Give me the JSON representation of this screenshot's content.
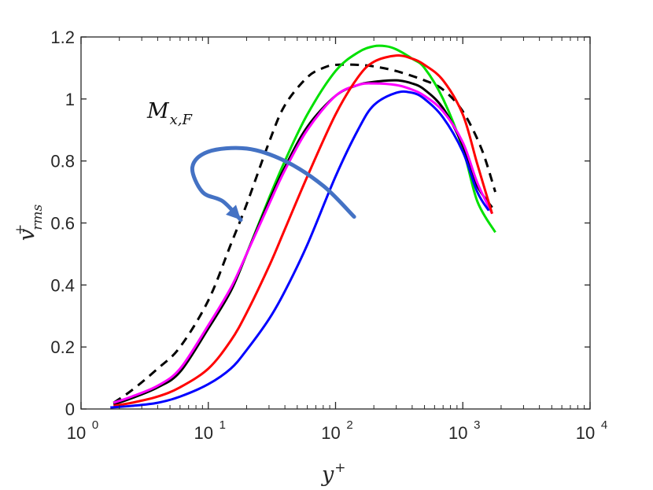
{
  "chart_data": {
    "type": "line",
    "title": "",
    "xlabel": {
      "base": "y",
      "sup": "+"
    },
    "ylabel": {
      "base": "v",
      "sup": "+",
      "sub": "rms"
    },
    "xscale": "log",
    "xlim": [
      1,
      10000
    ],
    "ylim": [
      0,
      1.2
    ],
    "xticks": [
      {
        "value": 1,
        "base": "10",
        "exp": "0"
      },
      {
        "value": 10,
        "base": "10",
        "exp": "1"
      },
      {
        "value": 100,
        "base": "10",
        "exp": "2"
      },
      {
        "value": 1000,
        "base": "10",
        "exp": "3"
      },
      {
        "value": 10000,
        "base": "10",
        "exp": "4"
      }
    ],
    "yticks": [
      {
        "value": 0,
        "label": "0"
      },
      {
        "value": 0.2,
        "label": "0.2"
      },
      {
        "value": 0.4,
        "label": "0.4"
      },
      {
        "value": 0.6,
        "label": "0.6"
      },
      {
        "value": 0.8,
        "label": "0.8"
      },
      {
        "value": 1.0,
        "label": "1"
      },
      {
        "value": 1.2,
        "label": "1.2"
      }
    ],
    "grid": false,
    "annotation": {
      "base": "M",
      "sub": "x,F",
      "x": 13,
      "y": 0.975
    },
    "arrow": {
      "color": "#4472c4",
      "points": [
        [
          140,
          0.62
        ],
        [
          80,
          0.72
        ],
        [
          40,
          0.8
        ],
        [
          20,
          0.84
        ],
        [
          10,
          0.83
        ],
        [
          7.5,
          0.78
        ],
        [
          9,
          0.7
        ],
        [
          13,
          0.67
        ],
        [
          18,
          0.61
        ]
      ]
    },
    "series": [
      {
        "name": "dashed",
        "color": "#000000",
        "dash": true,
        "x": [
          1.8,
          2.5,
          4,
          6,
          10,
          15,
          20,
          30,
          40,
          60,
          80,
          100,
          150,
          200,
          300,
          500,
          700,
          1000,
          1400,
          1800
        ],
        "y": [
          0.02,
          0.06,
          0.13,
          0.2,
          0.35,
          0.53,
          0.66,
          0.86,
          0.98,
          1.07,
          1.1,
          1.11,
          1.11,
          1.105,
          1.09,
          1.06,
          1.03,
          0.96,
          0.84,
          0.7
        ]
      },
      {
        "name": "green",
        "color": "#00e000",
        "dash": false,
        "x": [
          1.8,
          2.5,
          4,
          6,
          10,
          15,
          20,
          30,
          40,
          60,
          100,
          150,
          200,
          250,
          300,
          400,
          500,
          700,
          1000,
          1300,
          1800
        ],
        "y": [
          0.015,
          0.035,
          0.07,
          0.12,
          0.26,
          0.38,
          0.5,
          0.68,
          0.8,
          0.95,
          1.09,
          1.15,
          1.17,
          1.17,
          1.16,
          1.13,
          1.1,
          1.0,
          0.84,
          0.67,
          0.57
        ]
      },
      {
        "name": "black",
        "color": "#000000",
        "dash": false,
        "x": [
          1.8,
          2.5,
          4,
          6,
          10,
          15,
          20,
          30,
          40,
          60,
          100,
          150,
          200,
          300,
          400,
          500,
          700,
          1000,
          1300,
          1700
        ],
        "y": [
          0.015,
          0.035,
          0.07,
          0.12,
          0.26,
          0.38,
          0.5,
          0.67,
          0.78,
          0.91,
          1.01,
          1.045,
          1.055,
          1.06,
          1.05,
          1.03,
          0.97,
          0.85,
          0.72,
          0.65
        ]
      },
      {
        "name": "magenta",
        "color": "#ff00ff",
        "dash": false,
        "x": [
          1.8,
          2.5,
          4,
          6,
          10,
          15,
          20,
          30,
          40,
          60,
          100,
          150,
          200,
          300,
          400,
          500,
          700,
          1000,
          1300,
          1700
        ],
        "y": [
          0.02,
          0.04,
          0.075,
          0.13,
          0.27,
          0.39,
          0.5,
          0.66,
          0.77,
          0.9,
          1.01,
          1.045,
          1.05,
          1.045,
          1.03,
          1.01,
          0.96,
          0.86,
          0.73,
          0.63
        ]
      },
      {
        "name": "red",
        "color": "#ff0000",
        "dash": false,
        "x": [
          1.8,
          2.5,
          4,
          6,
          10,
          15,
          20,
          30,
          40,
          60,
          100,
          150,
          200,
          300,
          400,
          500,
          700,
          1000,
          1300,
          1700
        ],
        "y": [
          0.01,
          0.02,
          0.04,
          0.07,
          0.13,
          0.22,
          0.31,
          0.46,
          0.58,
          0.75,
          0.95,
          1.07,
          1.12,
          1.14,
          1.13,
          1.11,
          1.06,
          0.95,
          0.79,
          0.63
        ]
      },
      {
        "name": "blue",
        "color": "#0000ff",
        "dash": false,
        "x": [
          1.7,
          2.5,
          4,
          6,
          10,
          15,
          20,
          30,
          40,
          60,
          100,
          150,
          200,
          300,
          400,
          500,
          700,
          1000,
          1300,
          1600
        ],
        "y": [
          0.005,
          0.01,
          0.02,
          0.04,
          0.08,
          0.13,
          0.19,
          0.29,
          0.38,
          0.53,
          0.75,
          0.9,
          0.98,
          1.02,
          1.02,
          1.0,
          0.94,
          0.83,
          0.7,
          0.64
        ]
      }
    ]
  }
}
